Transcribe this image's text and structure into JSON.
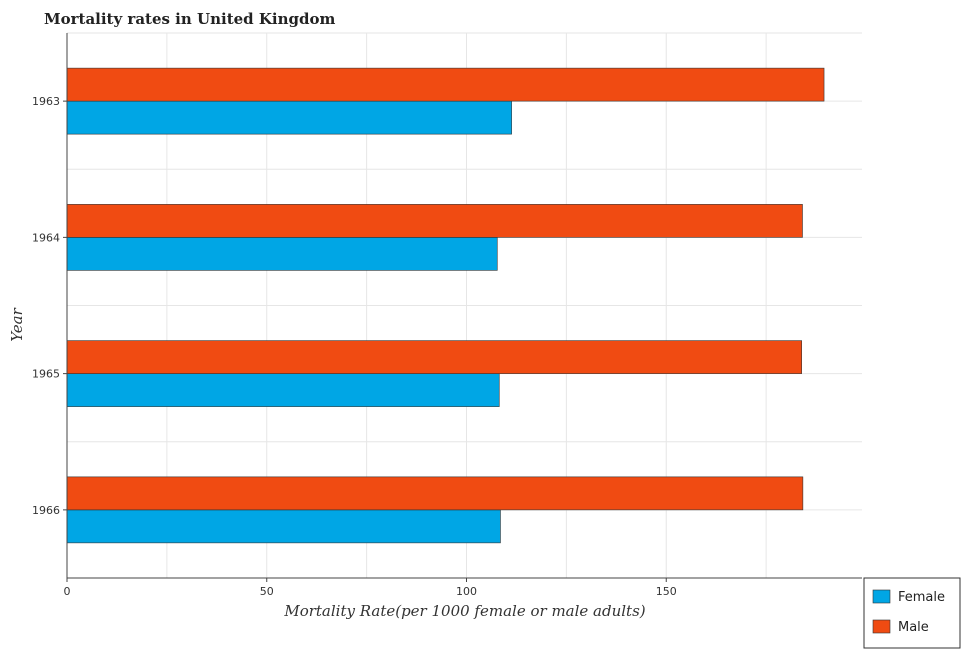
{
  "chart_data": {
    "type": "bar",
    "orientation": "horizontal",
    "title": "Mortality rates in United Kingdom",
    "xlabel": "Mortality Rate(per 1000 female or male adults)",
    "ylabel": "Year",
    "categories": [
      "1963",
      "1964",
      "1965",
      "1966"
    ],
    "series": [
      {
        "name": "Female",
        "color": "#00a6e5",
        "values": [
          111.3,
          107.7,
          108.2,
          108.5
        ]
      },
      {
        "name": "Male",
        "color": "#f04b12",
        "values": [
          189.5,
          184.1,
          183.9,
          184.2
        ]
      }
    ],
    "xlim": [
      0,
      199
    ],
    "xticks": [
      0,
      50,
      100,
      150
    ],
    "grid": true,
    "legend_position": "bottom-right"
  }
}
